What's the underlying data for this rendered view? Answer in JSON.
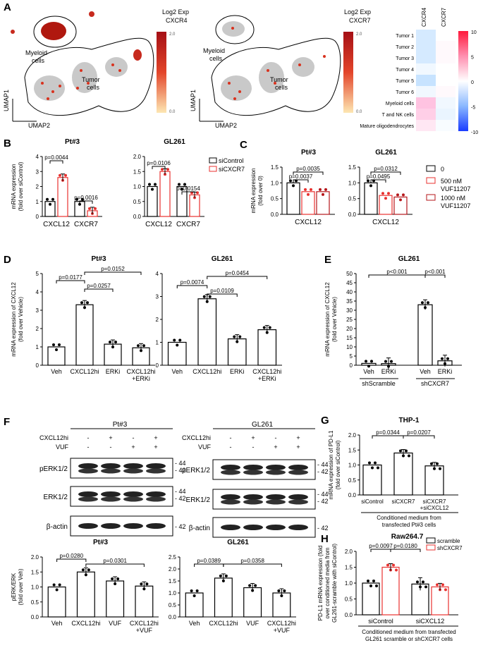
{
  "panels": {
    "A": "A",
    "B": "B",
    "C": "C",
    "D": "D",
    "E": "E",
    "F": "F",
    "G": "G",
    "H": "H"
  },
  "panelA": {
    "umap": {
      "cxcr4_title1": "Log2 Exp",
      "cxcr4_title2": "CXCR4",
      "cxcr7_title1": "Log2 Exp",
      "cxcr7_title2": "CXCR7",
      "scale_max": "2.0",
      "scale_min": "0.0",
      "myeloid1": "Myeloid",
      "myeloid2": "cells",
      "tumor1": "Tumor",
      "tumor2": "cells",
      "umap1": "UMAP1",
      "umap2": "UMAP2"
    },
    "heatmap": {
      "columns": [
        "CXCR4",
        "CXCR7"
      ],
      "rows": [
        "Tumor 1",
        "Tumor 2",
        "Tumor 3",
        "Tumor 4",
        "Tumor 5",
        "Tumor 6",
        "Myeloid cells",
        "T and NK cells",
        "Mature oligodendrocytes"
      ],
      "values": [
        [
          -3,
          0
        ],
        [
          -3,
          0.5
        ],
        [
          -3,
          0.5
        ],
        [
          -1,
          0
        ],
        [
          -4,
          0
        ],
        [
          -1,
          0.5
        ],
        [
          5,
          -1
        ],
        [
          4,
          -1.5
        ],
        [
          2,
          -0.5
        ]
      ],
      "scale_ticks": [
        "10",
        "5",
        "0",
        "-5",
        "-10"
      ]
    }
  },
  "chart_data": [
    {
      "id": "B-Pt3",
      "type": "bar",
      "title": "Pt#3",
      "ylabel": [
        "mRNA expression",
        "(fold over siControl)"
      ],
      "ylim": [
        0,
        4
      ],
      "yticks": [
        "0",
        "1",
        "2",
        "3",
        "4"
      ],
      "categories": [
        "CXCL12",
        "CXCR7"
      ],
      "series": [
        {
          "name": "siControl",
          "values": [
            1.0,
            1.0
          ]
        },
        {
          "name": "siCXCR7",
          "values": [
            2.6,
            0.38
          ]
        }
      ],
      "pvalues": [
        "p=0.0044",
        "p=0.0016"
      ]
    },
    {
      "id": "B-GL261",
      "type": "bar",
      "title": "GL261",
      "ylim": [
        0,
        2.0
      ],
      "yticks": [
        "0.0",
        "0.5",
        "1.0",
        "1.5",
        "2.0"
      ],
      "categories": [
        "CXCL12",
        "CXCR7"
      ],
      "series": [
        {
          "name": "siControl",
          "values": [
            1.0,
            1.0
          ]
        },
        {
          "name": "siCXCR7",
          "values": [
            1.5,
            0.72
          ]
        }
      ],
      "pvalues": [
        "p=0.0106",
        "p=0.0154"
      ]
    },
    {
      "id": "C-Pt3",
      "type": "bar",
      "title": "Pt#3",
      "ylabel": [
        "mRNA expression",
        "(fold over 0)"
      ],
      "ylim": [
        0,
        1.5
      ],
      "yticks": [
        "0.0",
        "0.5",
        "1.0",
        "1.5"
      ],
      "categories": [
        "CXCL12"
      ],
      "series": [
        {
          "name": "0",
          "values": [
            1.0
          ]
        },
        {
          "name": "500 nM VUF11207",
          "values": [
            0.72
          ]
        },
        {
          "name": "1000 nM VUF11207",
          "values": [
            0.72
          ]
        }
      ],
      "pvalues": [
        "p=0.0035",
        "p=0.0037"
      ]
    },
    {
      "id": "C-GL261",
      "type": "bar",
      "title": "GL261",
      "ylim": [
        0,
        1.5
      ],
      "yticks": [
        "0.0",
        "0.5",
        "1.0",
        "1.5"
      ],
      "categories": [
        "CXCL12"
      ],
      "series": [
        {
          "name": "0",
          "values": [
            1.0
          ]
        },
        {
          "name": "500 nM VUF11207",
          "values": [
            0.6
          ]
        },
        {
          "name": "1000 nM VUF11207",
          "values": [
            0.55
          ]
        }
      ],
      "pvalues": [
        "p=0.0312",
        "p=0.0495"
      ]
    },
    {
      "id": "D-Pt3",
      "type": "bar",
      "title": "Pt#3",
      "ylabel": [
        "mRNA expression of CXCL12",
        "(fold over Vehicle)"
      ],
      "ylim": [
        0,
        5
      ],
      "yticks": [
        "0",
        "1",
        "2",
        "3",
        "4",
        "5"
      ],
      "categories": [
        "Veh",
        "CXCL12hi",
        "ERKi",
        "CXCL12hi +ERKi"
      ],
      "values": [
        1.0,
        3.3,
        1.15,
        0.95
      ],
      "pvalues": [
        "p=0.0177",
        "p=0.0257",
        "p=0.0152"
      ]
    },
    {
      "id": "D-GL261",
      "type": "bar",
      "title": "GL261",
      "ylim": [
        0,
        4
      ],
      "yticks": [
        "0",
        "1",
        "2",
        "3",
        "4"
      ],
      "categories": [
        "Veh",
        "CXCL12hi",
        "ERKi",
        "CXCL12hi +ERKi"
      ],
      "values": [
        1.0,
        2.9,
        1.15,
        1.55
      ],
      "pvalues": [
        "p=0.0074",
        "p=0.0109",
        "p=0.0454"
      ]
    },
    {
      "id": "E-GL261",
      "type": "bar",
      "title": "GL261",
      "ylabel": [
        "mRNA expression of CXCL12",
        "(fold over Vehicle)"
      ],
      "ylim": [
        0,
        50
      ],
      "yticks": [
        "0",
        "5",
        "10",
        "15",
        "20",
        "25",
        "30",
        "35",
        "40",
        "45",
        "50"
      ],
      "categories": [
        "Veh",
        "ERKi",
        "Veh",
        "ERKi"
      ],
      "groups": [
        "shScramble",
        "shCXCR7"
      ],
      "values": [
        1.0,
        0.9,
        33,
        2.4
      ],
      "pvalues": [
        "p<0.001",
        "p<0.001"
      ]
    },
    {
      "id": "F-Pt3",
      "type": "bar",
      "title": "Pt#3",
      "ylabel": [
        "pERK/ERK",
        "(fold over Veh)"
      ],
      "ylim": [
        0,
        2.0
      ],
      "yticks": [
        "0.0",
        "0.5",
        "1.0",
        "1.5",
        "2.0"
      ],
      "categories": [
        "Veh",
        "CXCL12hi",
        "VUF",
        "CXCL12hi +VUF"
      ],
      "values": [
        1.0,
        1.5,
        1.2,
        1.03
      ],
      "pvalues": [
        "p=0.0280",
        "p=0.0301"
      ]
    },
    {
      "id": "F-GL261",
      "type": "bar",
      "title": "GL261",
      "ylim": [
        0,
        2.5
      ],
      "yticks": [
        "0.0",
        "0.5",
        "1.0",
        "1.5",
        "2.0",
        "2.5"
      ],
      "categories": [
        "Veh",
        "CXCL12hi",
        "VUF",
        "CXCL12hi +VUF"
      ],
      "values": [
        1.0,
        1.62,
        1.22,
        1.0
      ],
      "pvalues": [
        "p=0.0389",
        "p=0.0358"
      ]
    },
    {
      "id": "G-THP1",
      "type": "bar",
      "title": "THP-1",
      "ylabel": [
        "mRNA expression of PD-L1",
        "(fold over siControl)"
      ],
      "ylim": [
        0,
        2.0
      ],
      "yticks": [
        "0.0",
        "0.5",
        "1.0",
        "1.5",
        "2.0"
      ],
      "categories": [
        "siControl",
        "siCXCR7",
        "siCXCR7 +siCXCL12"
      ],
      "values": [
        1.0,
        1.4,
        0.97
      ],
      "pvalues": [
        "p=0.0344",
        "p=0.0207"
      ],
      "footer": [
        "Conditioned medium from",
        "transfected Pt#3 cells"
      ]
    },
    {
      "id": "H-Raw",
      "type": "bar",
      "title": "Raw264.7",
      "ylabel": [
        "PD-L1 mRNA expression (fold",
        "over conditioned media from",
        "GL261-scramble with siControl)"
      ],
      "ylim": [
        0,
        2.0
      ],
      "yticks": [
        "0.0",
        "0.5",
        "1.0",
        "1.5",
        "2.0"
      ],
      "categories": [
        "siControl",
        "siCXCL12"
      ],
      "series": [
        {
          "name": "scramble",
          "values": [
            1.0,
            0.97
          ]
        },
        {
          "name": "shCXCR7",
          "values": [
            1.5,
            0.88
          ]
        }
      ],
      "pvalues": [
        "p=0.0097",
        "p=0.0180"
      ],
      "footer": [
        "Conditioned medium from transfected",
        "GL261 scramble or shCXCR7 cells"
      ]
    }
  ],
  "westernF": {
    "pt3_title": "Pt#3",
    "gl_title": "GL261",
    "row_cxcl": "CXCL12hi",
    "row_vuf": "VUF",
    "signs_cxcl": [
      "-",
      "+",
      "-",
      "+"
    ],
    "signs_vuf": [
      "-",
      "-",
      "+",
      "+"
    ],
    "bands": [
      "pERK1/2",
      "ERK1/2",
      "β-actin"
    ],
    "mw": [
      "44",
      "42",
      "44",
      "42",
      "42"
    ]
  },
  "colors": {
    "control": "#000000",
    "treated": "#e8312f",
    "pink": "#e8312f"
  }
}
